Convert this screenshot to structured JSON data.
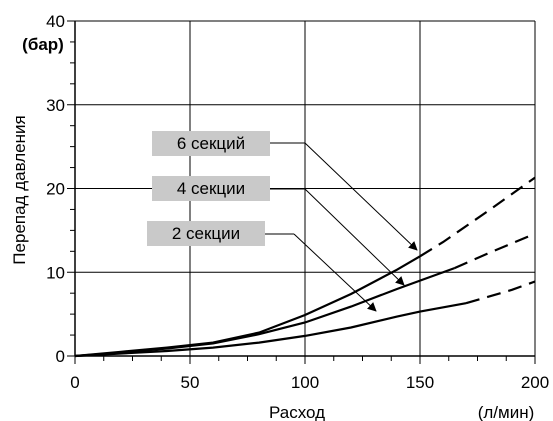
{
  "chart_data": {
    "type": "line",
    "xlabel": "Расход",
    "x_unit": "(л/мин)",
    "ylabel": "Перепад давления",
    "y_unit": "(бар)",
    "xlim": [
      0,
      200
    ],
    "ylim": [
      0,
      40
    ],
    "x_ticks": [
      0,
      50,
      100,
      150,
      200
    ],
    "y_ticks": [
      0,
      10,
      20,
      30,
      40
    ],
    "grid": true,
    "series": [
      {
        "name": "6 секций",
        "solid_until_x": 150,
        "points": [
          [
            0,
            0
          ],
          [
            20,
            0.5
          ],
          [
            40,
            1.0
          ],
          [
            60,
            1.6
          ],
          [
            80,
            2.8
          ],
          [
            100,
            4.9
          ],
          [
            120,
            7.4
          ],
          [
            140,
            10.3
          ],
          [
            150,
            11.9
          ],
          [
            160,
            13.6
          ],
          [
            180,
            17.4
          ],
          [
            200,
            21.3
          ]
        ]
      },
      {
        "name": "4 секции",
        "solid_until_x": 165,
        "points": [
          [
            0,
            0
          ],
          [
            20,
            0.4
          ],
          [
            40,
            0.9
          ],
          [
            60,
            1.5
          ],
          [
            80,
            2.6
          ],
          [
            100,
            4.0
          ],
          [
            120,
            5.9
          ],
          [
            140,
            8.0
          ],
          [
            150,
            9.0
          ],
          [
            165,
            10.5
          ],
          [
            180,
            12.3
          ],
          [
            200,
            14.6
          ]
        ]
      },
      {
        "name": "2 секции",
        "solid_until_x": 170,
        "points": [
          [
            0,
            0
          ],
          [
            20,
            0.3
          ],
          [
            40,
            0.6
          ],
          [
            60,
            1.0
          ],
          [
            80,
            1.6
          ],
          [
            100,
            2.4
          ],
          [
            120,
            3.4
          ],
          [
            140,
            4.7
          ],
          [
            150,
            5.3
          ],
          [
            170,
            6.3
          ],
          [
            190,
            7.9
          ],
          [
            200,
            8.9
          ]
        ]
      }
    ]
  }
}
